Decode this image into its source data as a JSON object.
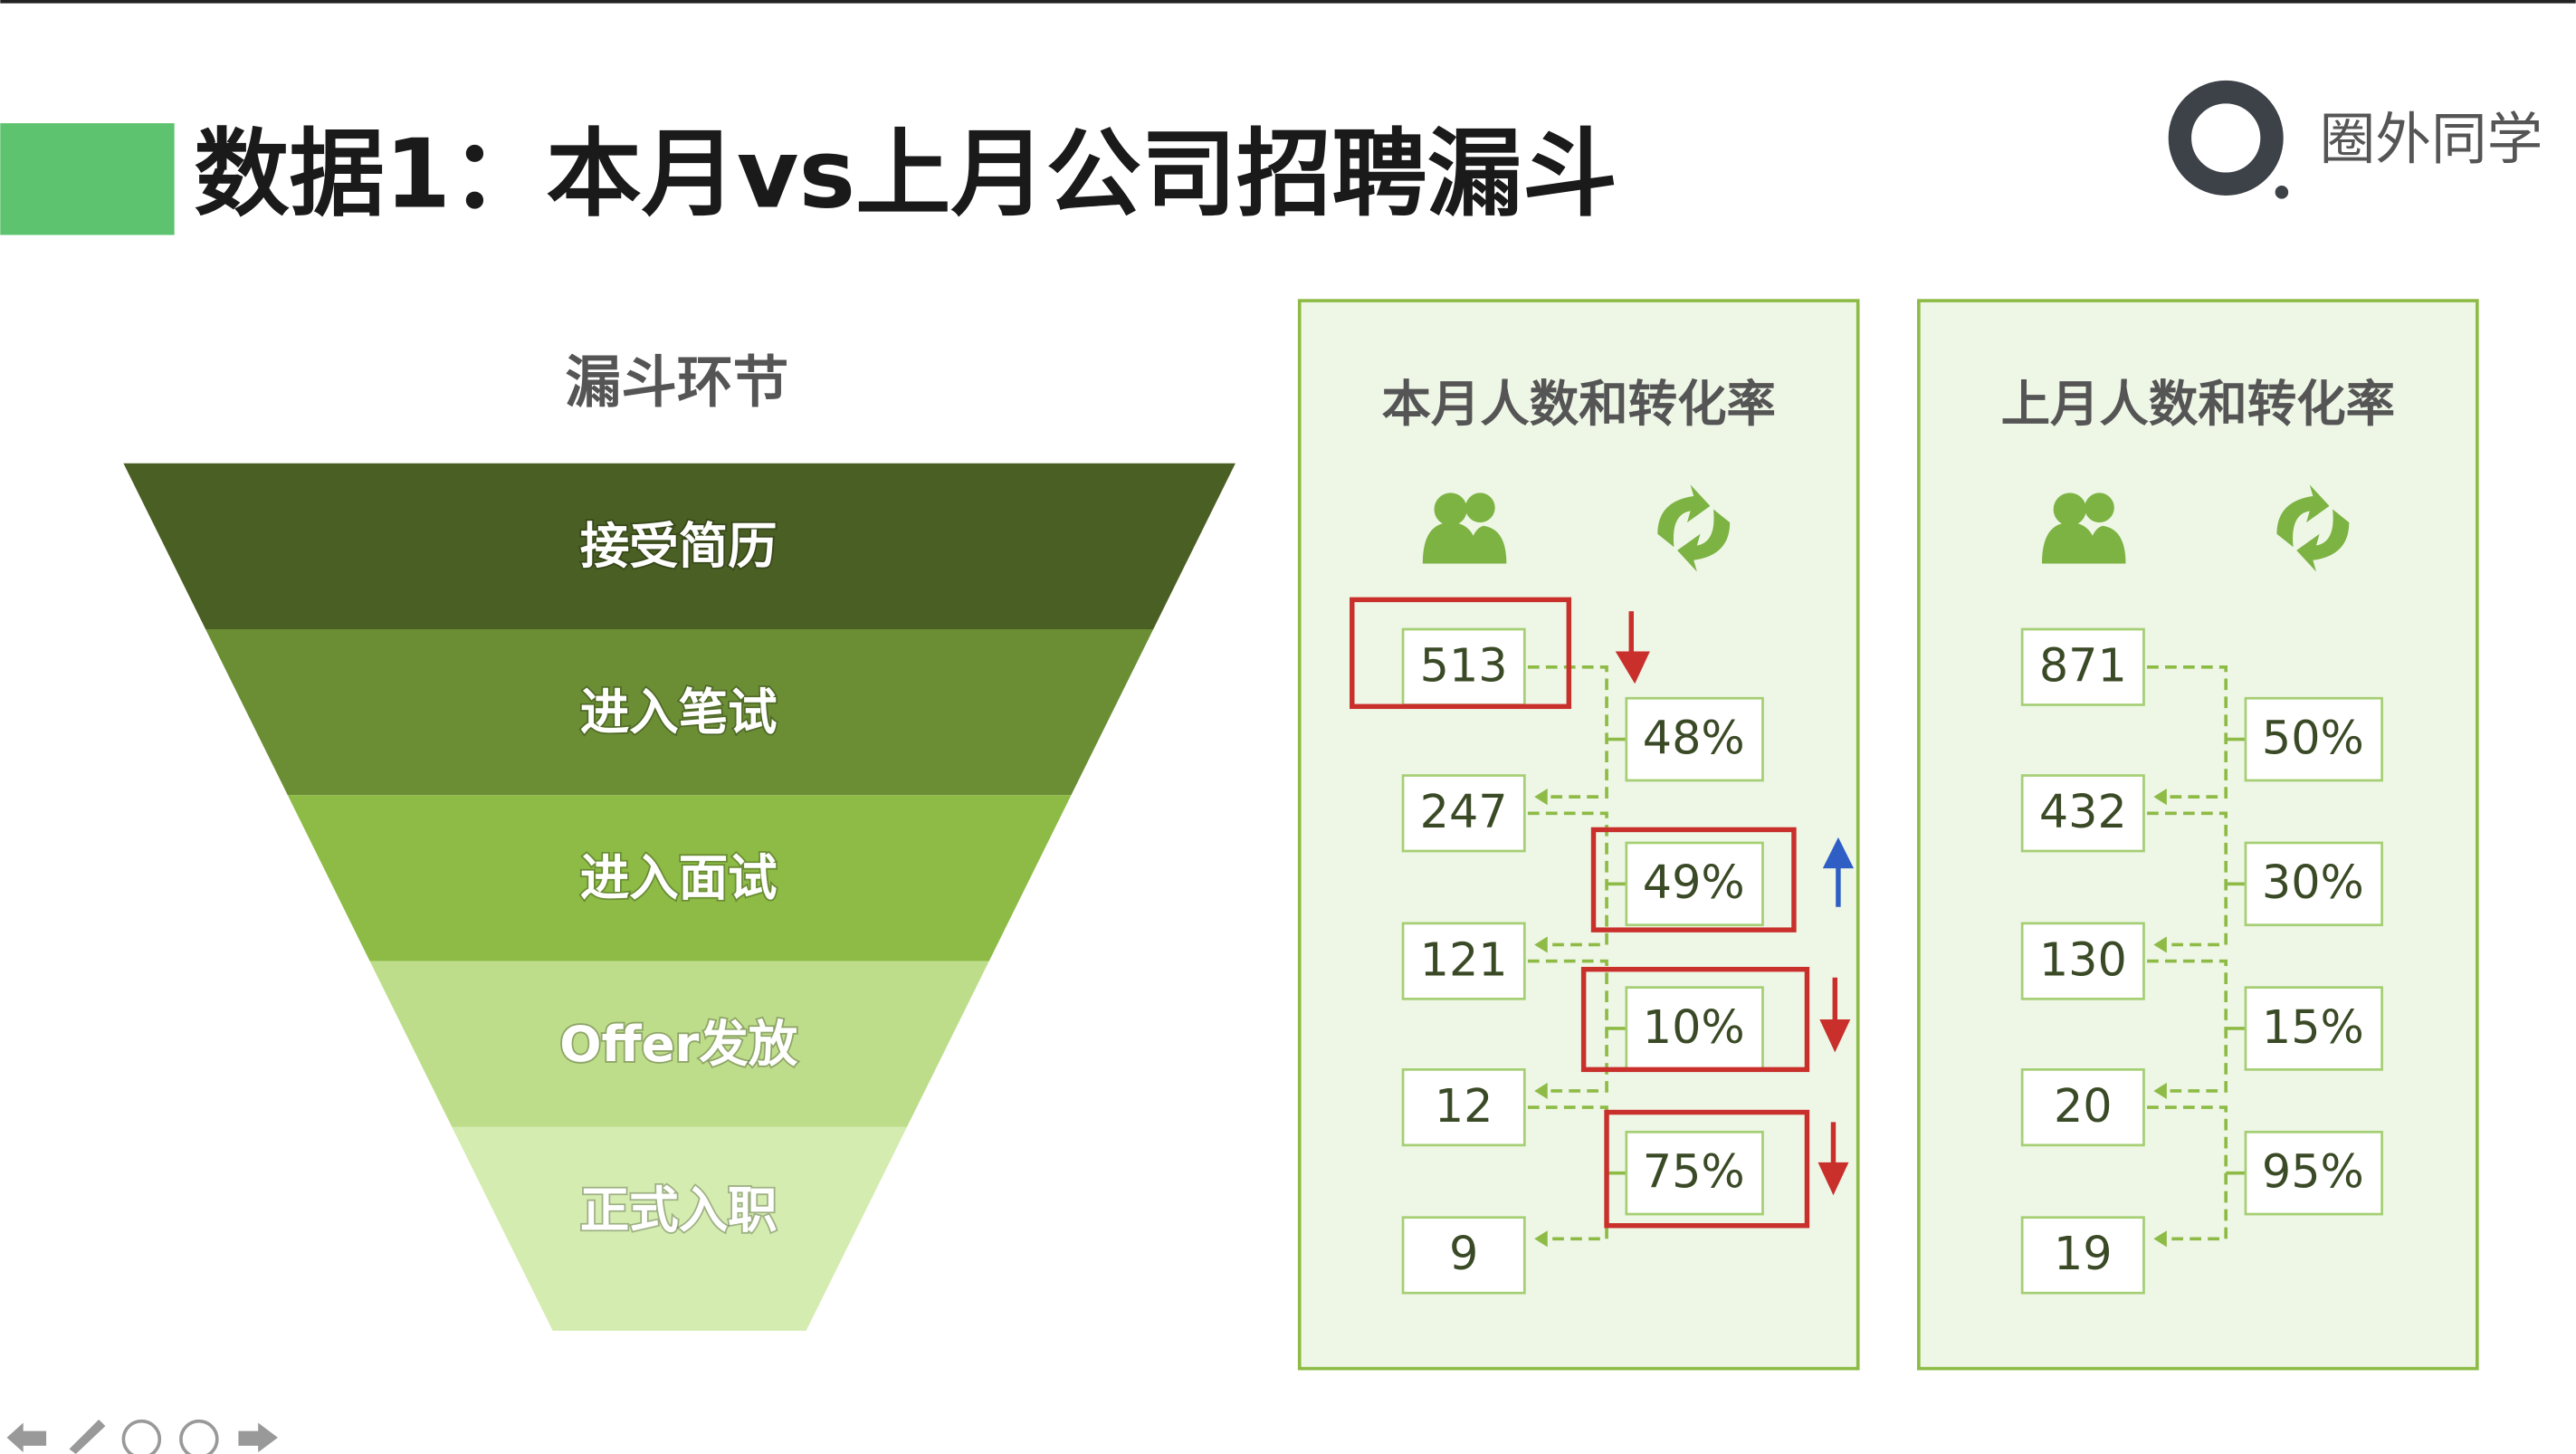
{
  "header": {
    "title": "数据1：本月vs上月公司招聘漏斗",
    "logo": "圈外同学"
  },
  "funnel": {
    "title": "漏斗环节",
    "stages": [
      "接受简历",
      "进入笔试",
      "进入面试",
      "Offer发放",
      "正式入职"
    ]
  },
  "panels": [
    {
      "title": "本月人数和转化率",
      "counts": [
        513,
        247,
        121,
        12,
        9
      ],
      "rates": [
        "48%",
        "49%",
        "10%",
        "75%"
      ]
    },
    {
      "title": "上月人数和转化率",
      "counts": [
        871,
        432,
        130,
        20,
        19
      ],
      "rates": [
        "50%",
        "30%",
        "15%",
        "95%"
      ]
    }
  ]
}
